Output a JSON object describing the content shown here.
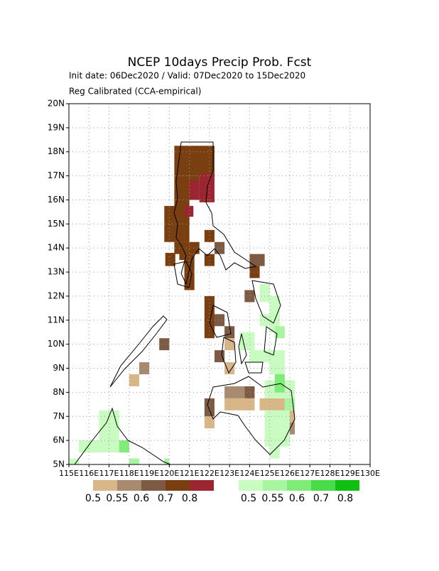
{
  "title": "NCEP 10days Precip Prob. Fcst",
  "subtitle": "Init date: 06Dec2020 / Valid: 07Dec2020 to 15Dec2020",
  "subtitle2": "Reg Calibrated (CCA-empirical)",
  "map": {
    "xlim": [
      115,
      130
    ],
    "ylim": [
      5,
      20
    ],
    "xticks": [
      {
        "value": 115,
        "label": "115E"
      },
      {
        "value": 116,
        "label": "116E"
      },
      {
        "value": 117,
        "label": "117E"
      },
      {
        "value": 118,
        "label": "118E"
      },
      {
        "value": 119,
        "label": "119E"
      },
      {
        "value": 120,
        "label": "120E"
      },
      {
        "value": 121,
        "label": "121E"
      },
      {
        "value": 122,
        "label": "122E"
      },
      {
        "value": 123,
        "label": "123E"
      },
      {
        "value": 124,
        "label": "124E"
      },
      {
        "value": 125,
        "label": "125E"
      },
      {
        "value": 126,
        "label": "126E"
      },
      {
        "value": 127,
        "label": "127E"
      },
      {
        "value": 128,
        "label": "128E"
      },
      {
        "value": 129,
        "label": "129E"
      },
      {
        "value": 130,
        "label": "130E"
      }
    ],
    "yticks": [
      {
        "value": 5,
        "label": "5N"
      },
      {
        "value": 6,
        "label": "6N"
      },
      {
        "value": 7,
        "label": "7N"
      },
      {
        "value": 8,
        "label": "8N"
      },
      {
        "value": 9,
        "label": "9N"
      },
      {
        "value": 10,
        "label": "10N"
      },
      {
        "value": 11,
        "label": "11N"
      },
      {
        "value": 12,
        "label": "12N"
      },
      {
        "value": 13,
        "label": "13N"
      },
      {
        "value": 14,
        "label": "14N"
      },
      {
        "value": 15,
        "label": "15N"
      },
      {
        "value": 16,
        "label": "16N"
      },
      {
        "value": 17,
        "label": "17N"
      },
      {
        "value": 18,
        "label": "18N"
      },
      {
        "value": 19,
        "label": "19N"
      },
      {
        "value": 20,
        "label": "20N"
      }
    ],
    "grid": true,
    "levels": [
      0.5,
      0.55,
      0.6,
      0.7,
      0.8
    ],
    "dry_colors": [
      "#d8b688",
      "#a88a6e",
      "#7c5a43",
      "#7a3f10",
      "#9b2530"
    ],
    "wet_colors": [
      "#c8fcc0",
      "#a8f5a0",
      "#80ec78",
      "#48dc48",
      "#10c010"
    ],
    "dry": [
      {
        "lon0": 120.25,
        "lon1": 122.25,
        "lat0": 17,
        "lat1": 18.25,
        "prob": 0.7
      },
      {
        "lon0": 120.25,
        "lon1": 121,
        "lat0": 15,
        "lat1": 17,
        "prob": 0.7
      },
      {
        "lon0": 121,
        "lon1": 121.5,
        "lat0": 16,
        "lat1": 17,
        "prob": 0.7
      },
      {
        "lon0": 121.5,
        "lon1": 122.25,
        "lat0": 15.9,
        "lat1": 17.1,
        "prob": 0.8
      },
      {
        "lon0": 121,
        "lon1": 121.5,
        "lat0": 16,
        "lat1": 16.8,
        "prob": 0.8
      },
      {
        "lon0": 120.75,
        "lon1": 121.2,
        "lat0": 15.3,
        "lat1": 15.75,
        "prob": 0.8
      },
      {
        "lon0": 119.75,
        "lon1": 120.75,
        "lat0": 14.25,
        "lat1": 15.75,
        "prob": 0.7
      },
      {
        "lon0": 120.75,
        "lon1": 121,
        "lat0": 14.25,
        "lat1": 15.3,
        "prob": 0.7
      },
      {
        "lon0": 120.5,
        "lon1": 121,
        "lat0": 13.5,
        "lat1": 14.25,
        "prob": 0.7
      },
      {
        "lon0": 119.8,
        "lon1": 120.3,
        "lat0": 13.25,
        "lat1": 13.8,
        "prob": 0.7
      },
      {
        "lon0": 120.25,
        "lon1": 121.5,
        "lat0": 13.75,
        "lat1": 14.25,
        "prob": 0.7
      },
      {
        "lon0": 121.75,
        "lon1": 122.25,
        "lat0": 14.25,
        "lat1": 14.75,
        "prob": 0.7
      },
      {
        "lon0": 121.75,
        "lon1": 122.25,
        "lat0": 13.25,
        "lat1": 13.75,
        "prob": 0.7
      },
      {
        "lon0": 122.25,
        "lon1": 122.75,
        "lat0": 13.75,
        "lat1": 14.25,
        "prob": 0.6
      },
      {
        "lon0": 120.75,
        "lon1": 121.25,
        "lat0": 12.25,
        "lat1": 13.75,
        "prob": 0.7
      },
      {
        "lon0": 124,
        "lon1": 124.75,
        "lat0": 13.25,
        "lat1": 13.75,
        "prob": 0.6
      },
      {
        "lon0": 124,
        "lon1": 124.5,
        "lat0": 12.75,
        "lat1": 13.25,
        "prob": 0.7
      },
      {
        "lon0": 123.75,
        "lon1": 124.25,
        "lat0": 11.75,
        "lat1": 12.25,
        "prob": 0.6
      },
      {
        "lon0": 121.75,
        "lon1": 122.25,
        "lat0": 10.25,
        "lat1": 12,
        "prob": 0.7
      },
      {
        "lon0": 122.25,
        "lon1": 122.75,
        "lat0": 10.75,
        "lat1": 11.25,
        "prob": 0.6
      },
      {
        "lon0": 122.75,
        "lon1": 123.25,
        "lat0": 10.25,
        "lat1": 10.75,
        "prob": 0.6
      },
      {
        "lon0": 122.75,
        "lon1": 123.25,
        "lat0": 9.75,
        "lat1": 10.25,
        "prob": 0.5
      },
      {
        "lon0": 122.25,
        "lon1": 122.75,
        "lat0": 9.25,
        "lat1": 9.75,
        "prob": 0.6
      },
      {
        "lon0": 122.75,
        "lon1": 123.25,
        "lat0": 8.75,
        "lat1": 9.25,
        "prob": 0.5
      },
      {
        "lon0": 119.5,
        "lon1": 120,
        "lat0": 9.75,
        "lat1": 10.25,
        "prob": 0.6
      },
      {
        "lon0": 118.5,
        "lon1": 119,
        "lat0": 8.75,
        "lat1": 9.25,
        "prob": 0.55
      },
      {
        "lon0": 118,
        "lon1": 118.5,
        "lat0": 8.25,
        "lat1": 8.75,
        "prob": 0.5
      },
      {
        "lon0": 122.75,
        "lon1": 123.75,
        "lat0": 7.75,
        "lat1": 8.25,
        "prob": 0.55
      },
      {
        "lon0": 123.75,
        "lon1": 124.25,
        "lat0": 7.75,
        "lat1": 8.25,
        "prob": 0.6
      },
      {
        "lon0": 122.75,
        "lon1": 124.25,
        "lat0": 7.25,
        "lat1": 7.75,
        "prob": 0.5
      },
      {
        "lon0": 121.75,
        "lon1": 122.25,
        "lat0": 7,
        "lat1": 7.75,
        "prob": 0.6
      },
      {
        "lon0": 121.75,
        "lon1": 122.25,
        "lat0": 6.5,
        "lat1": 7,
        "prob": 0.5
      },
      {
        "lon0": 124.5,
        "lon1": 125.75,
        "lat0": 7.25,
        "lat1": 7.75,
        "prob": 0.5
      },
      {
        "lon0": 125.75,
        "lon1": 126.25,
        "lat0": 6.75,
        "lat1": 7.25,
        "prob": 0.5
      },
      {
        "lon0": 125.75,
        "lon1": 126.25,
        "lat0": 6.25,
        "lat1": 6.75,
        "prob": 0.55
      }
    ],
    "wet": [
      {
        "lon0": 124.5,
        "lon1": 125,
        "lat0": 11.75,
        "lat1": 12.5,
        "prob": 0.5
      },
      {
        "lon0": 125,
        "lon1": 125.5,
        "lat0": 10.5,
        "lat1": 12,
        "prob": 0.5
      },
      {
        "lon0": 124.5,
        "lon1": 125,
        "lat0": 10.75,
        "lat1": 11.25,
        "prob": 0.5
      },
      {
        "lon0": 125.25,
        "lon1": 125.75,
        "lat0": 10.25,
        "lat1": 10.75,
        "prob": 0.55
      },
      {
        "lon0": 123.5,
        "lon1": 124.25,
        "lat0": 9.75,
        "lat1": 10.5,
        "prob": 0.5
      },
      {
        "lon0": 124,
        "lon1": 125,
        "lat0": 9.25,
        "lat1": 9.75,
        "prob": 0.5
      },
      {
        "lon0": 125,
        "lon1": 125.75,
        "lat0": 8.75,
        "lat1": 9.75,
        "prob": 0.5
      },
      {
        "lon0": 124.75,
        "lon1": 126.25,
        "lat0": 7.75,
        "lat1": 8.5,
        "prob": 0.5
      },
      {
        "lon0": 125.25,
        "lon1": 125.75,
        "lat0": 8,
        "lat1": 8.75,
        "prob": 0.6
      },
      {
        "lon0": 125.75,
        "lon1": 126.25,
        "lat0": 7.25,
        "lat1": 7.75,
        "prob": 0.55
      },
      {
        "lon0": 124.75,
        "lon1": 126,
        "lat0": 5.75,
        "lat1": 7.25,
        "prob": 0.5
      },
      {
        "lon0": 125,
        "lon1": 125.5,
        "lat0": 5.25,
        "lat1": 5.75,
        "prob": 0.5
      },
      {
        "lon0": 116.5,
        "lon1": 117.5,
        "lat0": 6,
        "lat1": 7.25,
        "prob": 0.5
      },
      {
        "lon0": 115.5,
        "lon1": 117.5,
        "lat0": 5.5,
        "lat1": 6,
        "prob": 0.5
      },
      {
        "lon0": 115,
        "lon1": 115.5,
        "lat0": 5,
        "lat1": 5.25,
        "prob": 0.5
      },
      {
        "lon0": 117.5,
        "lon1": 118,
        "lat0": 5.5,
        "lat1": 6,
        "prob": 0.6
      },
      {
        "lon0": 118,
        "lon1": 118.5,
        "lat0": 5,
        "lat1": 5.25,
        "prob": 0.55
      },
      {
        "lon0": 119.75,
        "lon1": 120,
        "lat0": 5,
        "lat1": 5.25,
        "prob": 0.55
      }
    ]
  }
}
